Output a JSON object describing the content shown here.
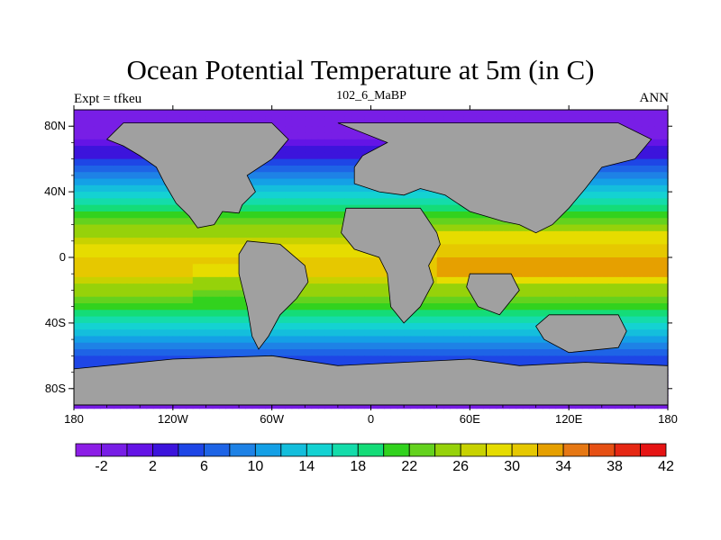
{
  "title": "Ocean Potential Temperature at 5m (in C)",
  "left_string": "Expt = tfkeu",
  "center_string": "102_6_MaBP",
  "right_string": "ANN",
  "axes": {
    "lon_labels": [
      "180",
      "120W",
      "60W",
      "0",
      "60E",
      "120E",
      "180"
    ],
    "lat_labels": [
      "80N",
      "40N",
      "0",
      "40S",
      "80S"
    ]
  },
  "colorbar": {
    "labels": [
      "-2",
      "2",
      "6",
      "10",
      "14",
      "18",
      "22",
      "26",
      "30",
      "34",
      "38",
      "42"
    ],
    "colors": [
      "#8c1ee6",
      "#781ee6",
      "#6414e6",
      "#3c14dc",
      "#1e46e6",
      "#1e64e6",
      "#1e82e6",
      "#14a0e6",
      "#14bedc",
      "#14d2d2",
      "#14dcaa",
      "#14dc78",
      "#32d21e",
      "#64d21e",
      "#96d20a",
      "#c8d200",
      "#e6dc00",
      "#e6c800",
      "#e6a000",
      "#e67814",
      "#e65014",
      "#e62814",
      "#e61414"
    ]
  },
  "chart_data": {
    "type": "heatmap",
    "title": "Ocean Potential Temperature at 5m (in C)",
    "x_range": [
      -180,
      180
    ],
    "y_range": [
      -90,
      90
    ],
    "land_color": "#a0a0a0",
    "color_levels": [
      -4,
      -2,
      0,
      2,
      4,
      6,
      8,
      10,
      12,
      14,
      16,
      18,
      20,
      22,
      24,
      26,
      28,
      30,
      32,
      34,
      36,
      38,
      40,
      42,
      44
    ]
  }
}
